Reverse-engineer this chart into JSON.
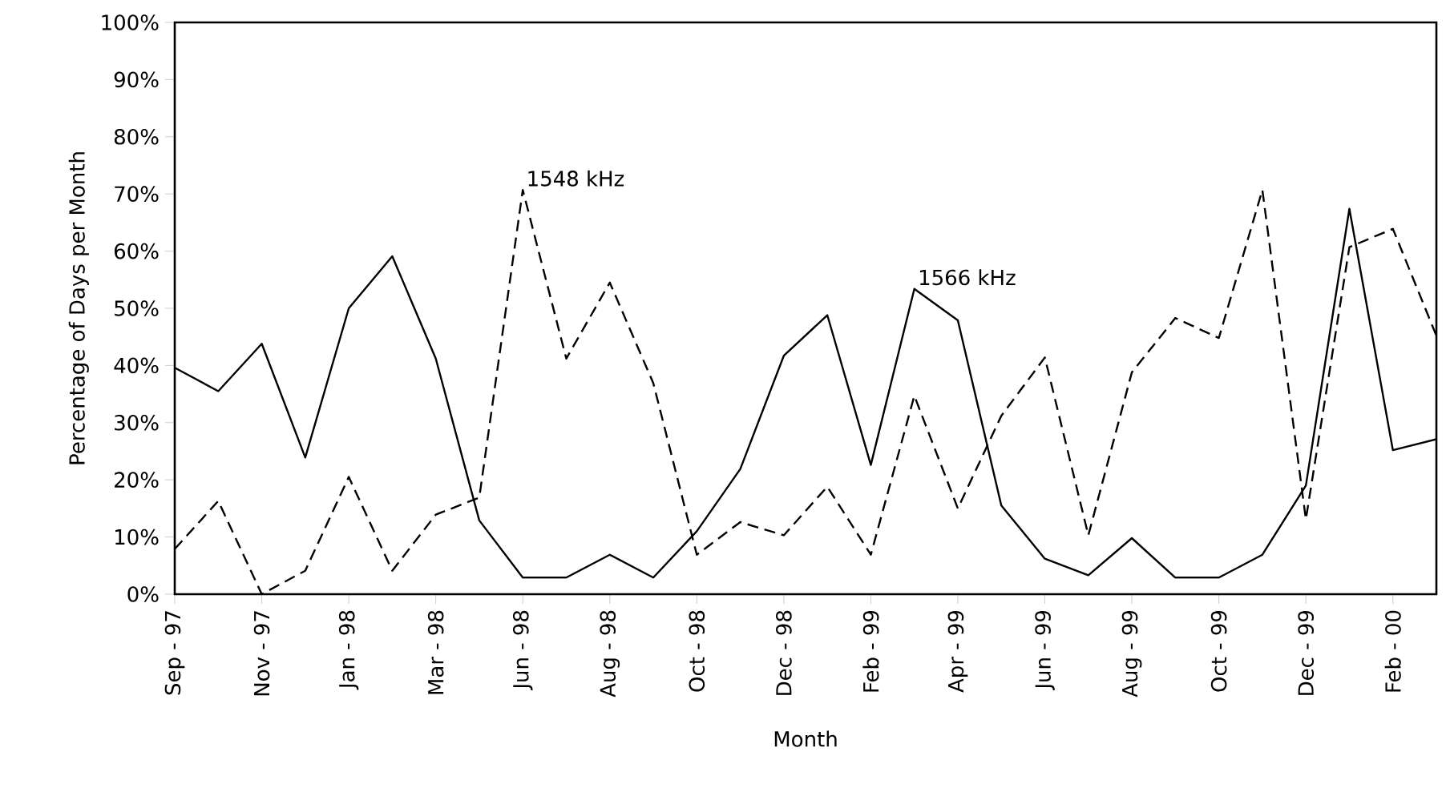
{
  "chart_data": {
    "type": "line",
    "xlabel": "Month",
    "ylabel": "Percentage of Days per Month",
    "categories": [
      "Sep - 97",
      null,
      "Nov - 97",
      null,
      "Jan - 98",
      null,
      "Mar - 98",
      null,
      "Jun - 98",
      null,
      "Aug - 98",
      null,
      "Oct - 98",
      null,
      "Dec - 98",
      null,
      "Feb - 99",
      null,
      "Apr - 99",
      null,
      "Jun - 99",
      null,
      "Aug - 99",
      null,
      "Oct - 99",
      null,
      "Dec - 99",
      null,
      "Feb - 00",
      null
    ],
    "series": [
      {
        "name": "1566 kHz",
        "color": "#000000",
        "line_style": "solid",
        "values": [
          39.6,
          35.5,
          43.8,
          23.9,
          50,
          59.1,
          41.2,
          12.9,
          2.9,
          2.9,
          6.9,
          2.9,
          11,
          21.9,
          41.7,
          48.8,
          22.6,
          53.4,
          47.9,
          15.5,
          6.2,
          3.3,
          9.8,
          2.9,
          2.9,
          6.9,
          19,
          67.4,
          25.2,
          27.1
        ]
      },
      {
        "name": "1548 kHz",
        "color": "#000000",
        "line_style": "dashed",
        "values": [
          7.9,
          16.3,
          0,
          4.1,
          20.5,
          4.1,
          13.9,
          16.9,
          70.7,
          41.2,
          54.5,
          36.9,
          6.9,
          12.6,
          10.3,
          18.8,
          6.9,
          34.7,
          15,
          31.2,
          41.4,
          10.3,
          38.8,
          48.3,
          44.8,
          70.7,
          13.1,
          60.7,
          63.9,
          45.2
        ]
      }
    ],
    "ylim": [
      0,
      100
    ],
    "yticks": [
      {
        "value": 0,
        "label": "0%"
      },
      {
        "value": 10,
        "label": "10%"
      },
      {
        "value": 20,
        "label": "20%"
      },
      {
        "value": 30,
        "label": "30%"
      },
      {
        "value": 40,
        "label": "40%"
      },
      {
        "value": 50,
        "label": "50%"
      },
      {
        "value": 60,
        "label": "60%"
      },
      {
        "value": 70,
        "label": "70%"
      },
      {
        "value": 80,
        "label": "80%"
      },
      {
        "value": 90,
        "label": "90%"
      },
      {
        "value": 100,
        "label": "100%"
      }
    ],
    "grid": false,
    "legend": false,
    "marker": "none"
  }
}
